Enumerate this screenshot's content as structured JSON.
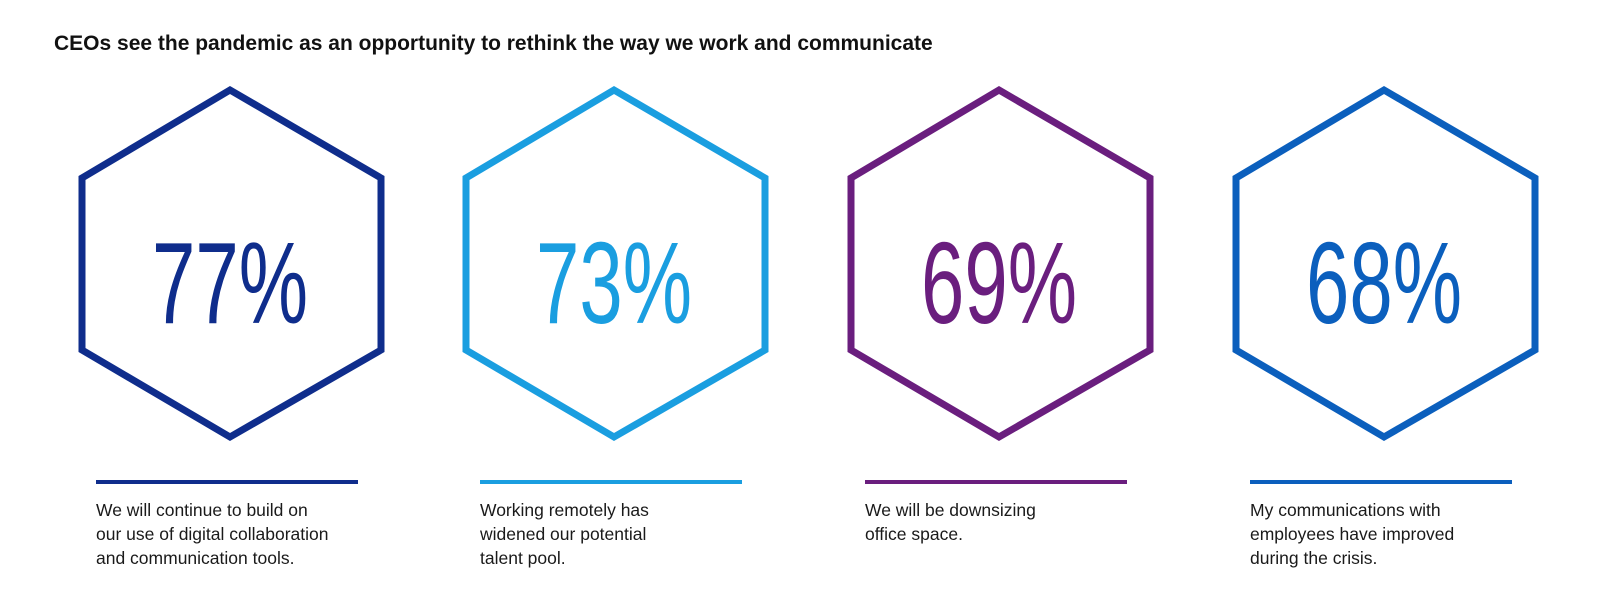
{
  "title": "CEOs see the pandemic as an opportunity to rethink the way we work and communicate",
  "chart_data": {
    "type": "table",
    "title": "CEOs see the pandemic as an opportunity to rethink the way we work and communicate",
    "items": [
      {
        "value": 77,
        "label": "77%",
        "color": "#0f2d8c",
        "caption": [
          "We will continue to build on",
          "our use of digital collaboration",
          "and communication tools."
        ]
      },
      {
        "value": 73,
        "label": "73%",
        "color": "#1a9ee0",
        "caption": [
          "Working remotely has",
          "widened our potential",
          "talent pool."
        ]
      },
      {
        "value": 69,
        "label": "69%",
        "color": "#6a1e7e",
        "caption": [
          "We will be downsizing",
          "office space."
        ]
      },
      {
        "value": 68,
        "label": "68%",
        "color": "#0b5fbd",
        "caption": [
          "My communications with",
          "employees have improved",
          "during the crisis."
        ]
      }
    ]
  }
}
